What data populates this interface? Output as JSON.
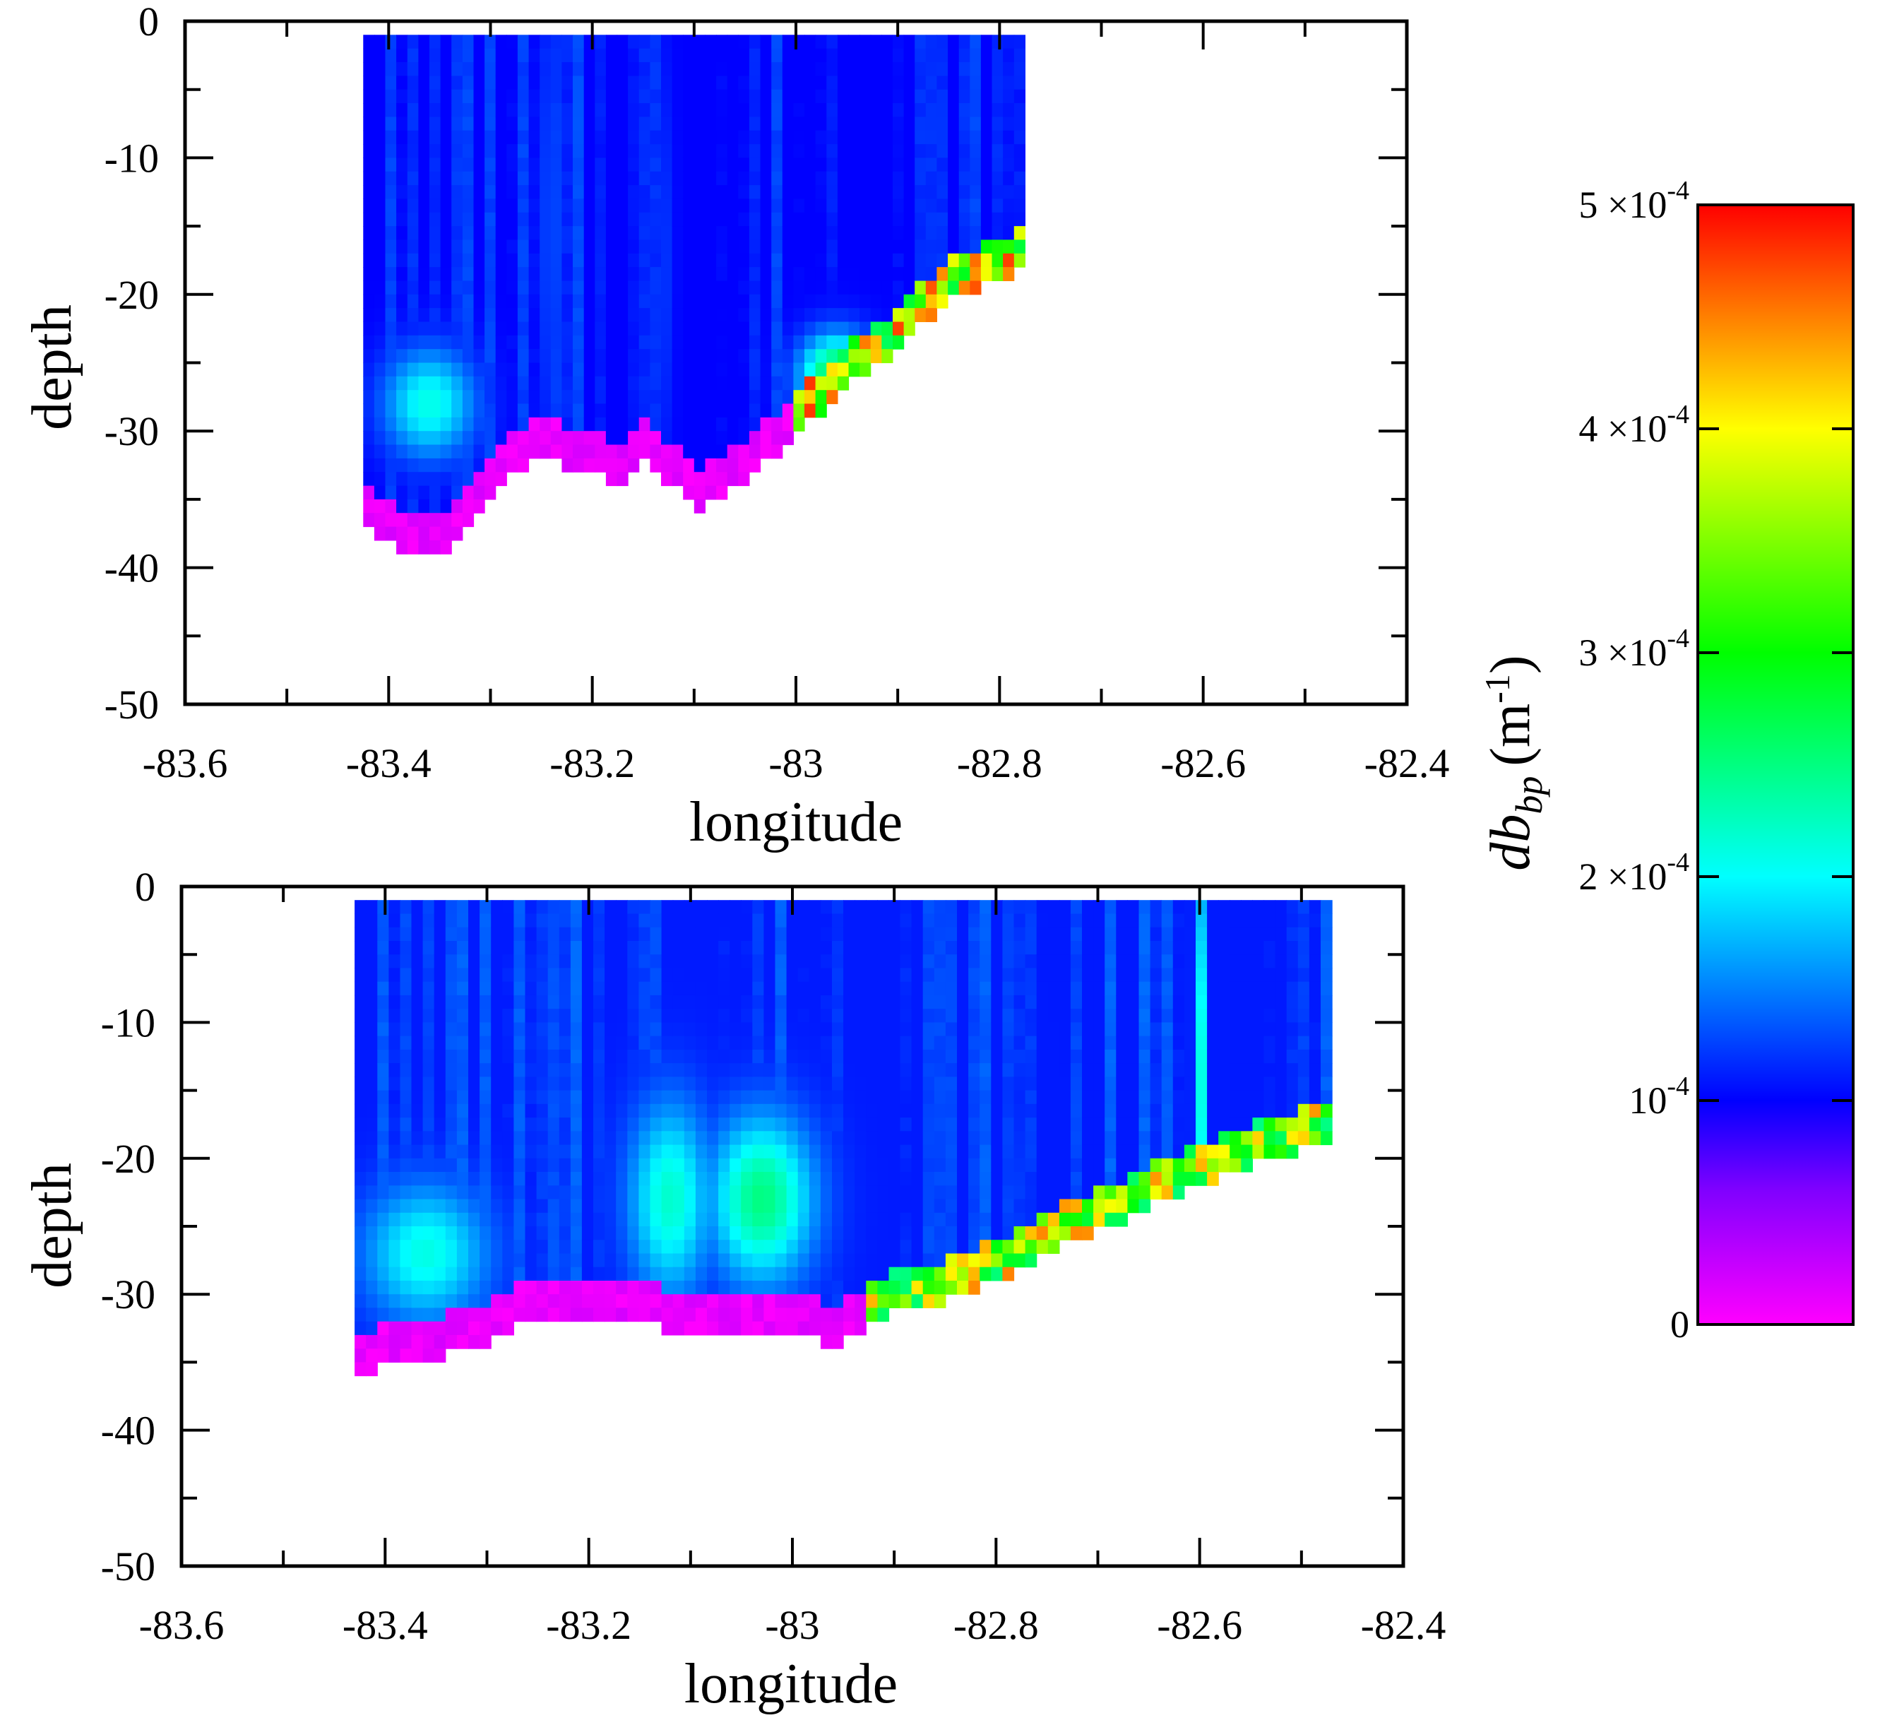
{
  "figure": {
    "colorbar": {
      "title_main": "db",
      "title_sub": "bp",
      "title_units": "(m",
      "title_units_exp": "-1",
      "title_units_close": ")",
      "ticks": [
        {
          "value": 0,
          "mantissa": "0",
          "times": "",
          "base": "",
          "exp": ""
        },
        {
          "value": 0.0001,
          "mantissa": "",
          "times": "",
          "base": "10",
          "exp": "-4"
        },
        {
          "value": 0.0002,
          "mantissa": "2",
          "times": "×",
          "base": "10",
          "exp": "-4"
        },
        {
          "value": 0.0003,
          "mantissa": "3",
          "times": "×",
          "base": "10",
          "exp": "-4"
        },
        {
          "value": 0.0004,
          "mantissa": "4",
          "times": "×",
          "base": "10",
          "exp": "-4"
        },
        {
          "value": 0.0005,
          "mantissa": "5",
          "times": "×",
          "base": "10",
          "exp": "-4"
        }
      ],
      "range": [
        0,
        0.0005
      ],
      "colors": [
        "#ff00ff",
        "#8000ff",
        "#0000ff",
        "#00ffff",
        "#00ff00",
        "#ffff00",
        "#ff0000"
      ]
    }
  },
  "chart_data": [
    {
      "type": "heatmap",
      "panel": "top",
      "xlabel": "longitude",
      "ylabel": "depth",
      "xlim": [
        -83.6,
        -82.4
      ],
      "ylim": [
        -50,
        0
      ],
      "xticks": [
        "-83.6",
        "-83.4",
        "-83.2",
        "-83",
        "-82.8",
        "-82.6",
        "-82.4"
      ],
      "yticks": [
        "0",
        "-10",
        "-20",
        "-30",
        "-40",
        "-50"
      ],
      "lon_range": [
        -83.425,
        -82.775
      ],
      "columns": 60,
      "cell_depth": 1,
      "top_depth": -1,
      "bottom_profile": [
        {
          "lon": -83.425,
          "depth": -36
        },
        {
          "lon": -83.39,
          "depth": -38.5
        },
        {
          "lon": -83.35,
          "depth": -38.5
        },
        {
          "lon": -83.31,
          "depth": -35.5
        },
        {
          "lon": -83.26,
          "depth": -31.5
        },
        {
          "lon": -83.2,
          "depth": -32.5
        },
        {
          "lon": -83.17,
          "depth": -33.5
        },
        {
          "lon": -83.15,
          "depth": -31.5
        },
        {
          "lon": -83.12,
          "depth": -33.5
        },
        {
          "lon": -83.1,
          "depth": -35.5
        },
        {
          "lon": -83.05,
          "depth": -33
        },
        {
          "lon": -83.0,
          "depth": -30
        },
        {
          "lon": -82.95,
          "depth": -26
        },
        {
          "lon": -82.9,
          "depth": -23.5
        },
        {
          "lon": -82.85,
          "depth": -20
        },
        {
          "lon": -82.8,
          "depth": -18.5
        },
        {
          "lon": -82.775,
          "depth": -17.5
        }
      ],
      "bottom_edge_peak": 0.00048,
      "features": [
        {
          "lon": -83.36,
          "depth": -28,
          "value": 0.00021,
          "rx": 0.045,
          "ry": 4
        },
        {
          "lon": -83.24,
          "depth": -15,
          "value": 0.00013,
          "rx": 0.012,
          "ry": 18
        },
        {
          "lon": -83.13,
          "depth": -18,
          "value": 0.00012,
          "rx": 0.01,
          "ry": 15
        },
        {
          "lon": -82.96,
          "depth": -26,
          "value": 0.00028,
          "rx": 0.035,
          "ry": 3
        }
      ],
      "background_value": 0.0001
    },
    {
      "type": "heatmap",
      "panel": "bottom",
      "xlabel": "longitude",
      "ylabel": "depth",
      "xlim": [
        -83.6,
        -82.4
      ],
      "ylim": [
        -50,
        0
      ],
      "xticks": [
        "-83.6",
        "-83.4",
        "-83.2",
        "-83",
        "-82.8",
        "-82.6",
        "-82.4"
      ],
      "yticks": [
        "0",
        "-10",
        "-20",
        "-30",
        "-40",
        "-50"
      ],
      "lon_range": [
        -83.43,
        -82.47
      ],
      "columns": 86,
      "cell_depth": 1,
      "top_depth": -1,
      "bottom_profile": [
        {
          "lon": -83.43,
          "depth": -35.5
        },
        {
          "lon": -83.38,
          "depth": -34.5
        },
        {
          "lon": -83.3,
          "depth": -33.5
        },
        {
          "lon": -83.27,
          "depth": -31.5
        },
        {
          "lon": -83.2,
          "depth": -31
        },
        {
          "lon": -83.1,
          "depth": -32.5
        },
        {
          "lon": -83.05,
          "depth": -32.5
        },
        {
          "lon": -83.0,
          "depth": -32
        },
        {
          "lon": -82.96,
          "depth": -33.5
        },
        {
          "lon": -82.93,
          "depth": -32
        },
        {
          "lon": -82.9,
          "depth": -30.5
        },
        {
          "lon": -82.85,
          "depth": -30
        },
        {
          "lon": -82.8,
          "depth": -28.5
        },
        {
          "lon": -82.75,
          "depth": -26.5
        },
        {
          "lon": -82.7,
          "depth": -25
        },
        {
          "lon": -82.65,
          "depth": -23
        },
        {
          "lon": -82.6,
          "depth": -21.5
        },
        {
          "lon": -82.55,
          "depth": -20
        },
        {
          "lon": -82.5,
          "depth": -19
        },
        {
          "lon": -82.47,
          "depth": -18
        }
      ],
      "bottom_edge_peak": 0.00045,
      "features": [
        {
          "lon": -83.36,
          "depth": -27,
          "value": 0.00021,
          "rx": 0.06,
          "ry": 5
        },
        {
          "lon": -83.12,
          "depth": -23,
          "value": 0.00022,
          "rx": 0.04,
          "ry": 7
        },
        {
          "lon": -83.03,
          "depth": -23,
          "value": 0.00025,
          "rx": 0.05,
          "ry": 6
        },
        {
          "lon": -82.6,
          "depth": -14,
          "value": 0.00022,
          "rx": 0.005,
          "ry": 18
        }
      ],
      "background_value": 0.00011
    }
  ]
}
